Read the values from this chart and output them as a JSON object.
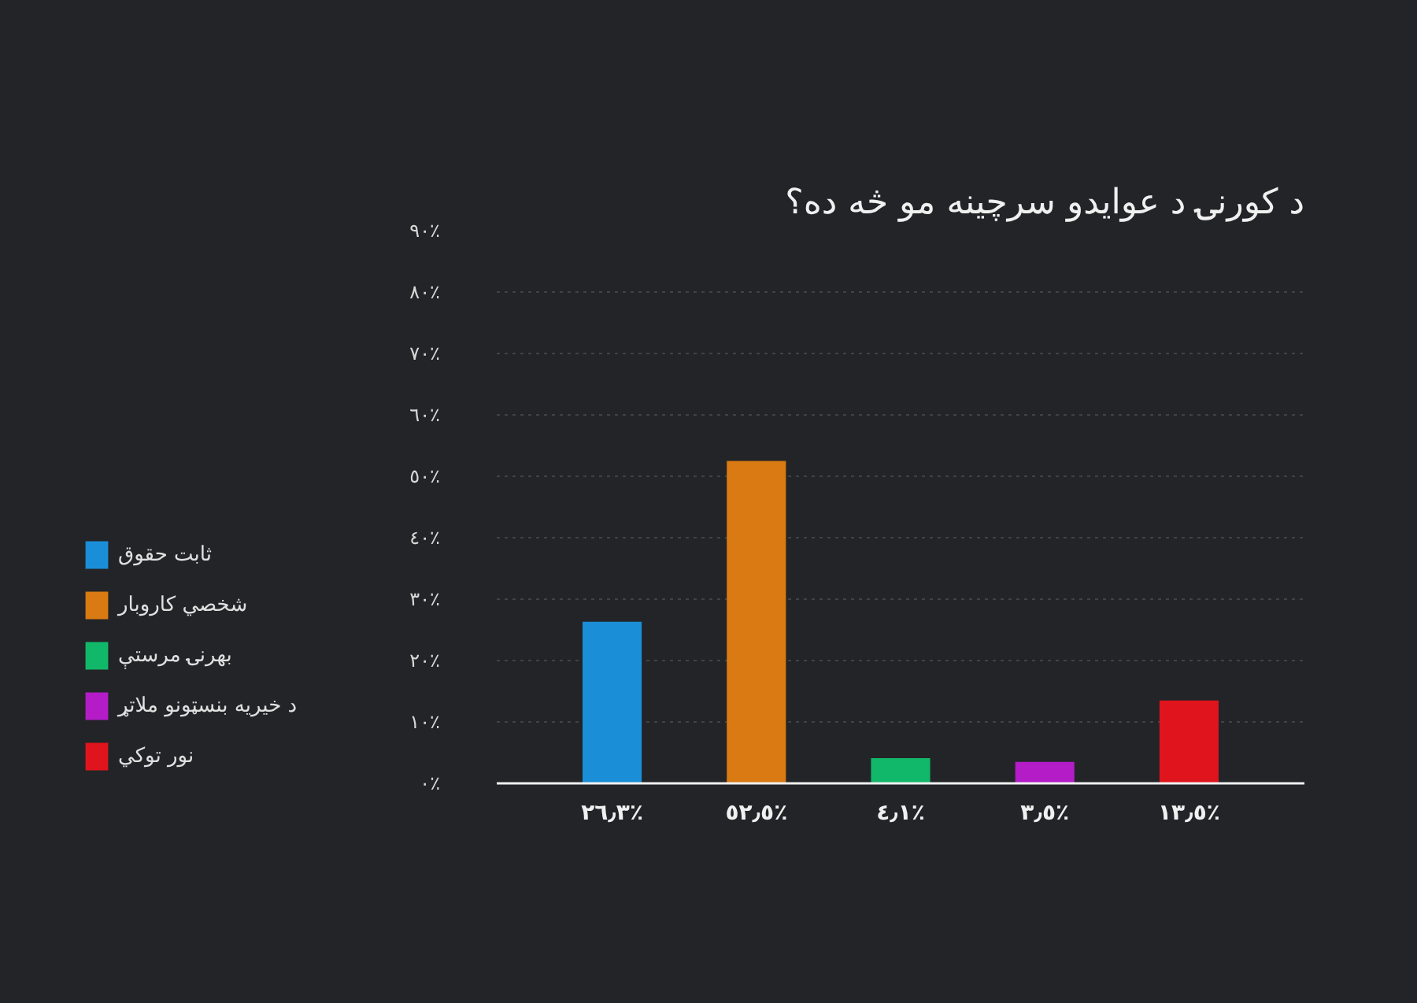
{
  "chart_data": {
    "type": "bar",
    "title": "د کورنۍ د عوایدو سرچینه مو څه ده؟",
    "categories": [
      null,
      null,
      null,
      null,
      null
    ],
    "series": [
      {
        "name": "ثابت حقوق",
        "color": "#1a8fd8",
        "values": [
          26.3,
          null,
          null,
          null,
          null
        ],
        "value_labels": [
          "٢٦٫٣٪",
          null,
          null,
          null,
          null
        ]
      },
      {
        "name": "شخصي کاروبار",
        "color": "#d97a12",
        "values": [
          null,
          52.5,
          null,
          null,
          null
        ],
        "value_labels": [
          null,
          "٥٢٫٥٪",
          null,
          null,
          null
        ]
      },
      {
        "name": "بهرنۍ مرستې",
        "color": "#12b86a",
        "values": [
          null,
          null,
          4.1,
          null,
          null
        ],
        "value_labels": [
          null,
          null,
          "٤٫١٪",
          null,
          null
        ]
      },
      {
        "name": "د خیریه بنسټونو ملاتړ",
        "color": "#b41cc8",
        "values": [
          null,
          null,
          null,
          3.5,
          null
        ],
        "value_labels": [
          null,
          null,
          null,
          "٣٫٥٪",
          null
        ]
      },
      {
        "name": "نور توکي",
        "color": "#e0141c",
        "values": [
          null,
          null,
          null,
          null,
          13.5
        ],
        "value_labels": [
          null,
          null,
          null,
          null,
          "١٣٫٥٪"
        ]
      }
    ],
    "ylim": [
      0,
      90
    ],
    "yticks": [
      {
        "value": 0,
        "label": "٠٪"
      },
      {
        "value": 10,
        "label": "١٠٪"
      },
      {
        "value": 20,
        "label": "٢٠٪"
      },
      {
        "value": 30,
        "label": "٣٠٪"
      },
      {
        "value": 40,
        "label": "٤٠٪"
      },
      {
        "value": 50,
        "label": "٥٠٪"
      },
      {
        "value": 60,
        "label": "٦٠٪"
      },
      {
        "value": 70,
        "label": "٧٠٪"
      },
      {
        "value": 80,
        "label": "٨٠٪"
      },
      {
        "value": 90,
        "label": "٩٠٪"
      }
    ],
    "grid": "y",
    "legend": "left"
  }
}
